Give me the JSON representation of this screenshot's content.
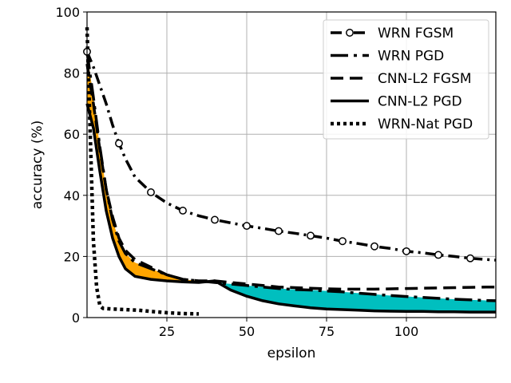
{
  "chart_data": {
    "type": "line",
    "xlabel": "epsilon",
    "ylabel": "accuracy (%)",
    "xlim": [
      0,
      128
    ],
    "ylim": [
      0,
      100
    ],
    "x_ticks": [
      25,
      50,
      75,
      100
    ],
    "x_tick_labels": [
      "25",
      "50",
      "75",
      "100"
    ],
    "y_ticks": [
      0,
      20,
      40,
      60,
      80,
      100
    ],
    "y_tick_labels": [
      "0",
      "20",
      "40",
      "60",
      "80",
      "100"
    ],
    "grid": true,
    "legend_position": "top-right",
    "series": [
      {
        "name": "WRN FGSM",
        "style": "dashdot",
        "marker": "circle",
        "marker_x": [
          0,
          10,
          20,
          30,
          40,
          50,
          60,
          70,
          80,
          90,
          100,
          110,
          120
        ],
        "x": [
          0,
          2,
          4,
          6,
          8,
          10,
          12,
          15,
          20,
          25,
          30,
          35,
          40,
          45,
          50,
          55,
          60,
          65,
          70,
          75,
          80,
          85,
          90,
          95,
          100,
          105,
          110,
          115,
          120,
          125,
          128
        ],
        "y": [
          87,
          82,
          76,
          70,
          63,
          57,
          52,
          46,
          41,
          37.5,
          35,
          33.3,
          32,
          31,
          30,
          29.2,
          28.3,
          27.6,
          26.8,
          26,
          25,
          24.2,
          23.3,
          22.6,
          21.7,
          21.2,
          20.5,
          20,
          19.4,
          19,
          18.8
        ]
      },
      {
        "name": "WRN PGD",
        "style": "dashdot-long",
        "x": [
          0,
          2,
          4,
          6,
          8,
          10,
          12,
          15,
          20,
          25,
          30,
          35,
          40,
          45,
          50,
          55,
          60,
          65,
          70,
          75,
          80,
          85,
          90,
          95,
          100,
          105,
          110,
          115,
          120,
          125,
          128
        ],
        "y": [
          87,
          72,
          56,
          42,
          32,
          25,
          21,
          18,
          16,
          14,
          12.5,
          12,
          11.5,
          11,
          10.5,
          10,
          9.5,
          9.2,
          9,
          8.7,
          8.4,
          8,
          7.6,
          7.2,
          6.9,
          6.6,
          6.3,
          6,
          5.8,
          5.6,
          5.5
        ]
      },
      {
        "name": "CNN-L2 FGSM",
        "style": "dashed",
        "x": [
          0,
          2,
          4,
          6,
          8,
          10,
          12,
          15,
          20,
          25,
          30,
          35,
          40,
          45,
          50,
          55,
          60,
          65,
          70,
          75,
          80,
          85,
          90,
          95,
          100,
          105,
          110,
          115,
          120,
          125,
          128
        ],
        "y": [
          83,
          70,
          55,
          42,
          33,
          26,
          22,
          19,
          16.5,
          14,
          12.5,
          12,
          12,
          11.5,
          11,
          10.5,
          10,
          9.8,
          9.6,
          9.4,
          9.3,
          9.3,
          9.3,
          9.4,
          9.5,
          9.6,
          9.7,
          9.8,
          9.9,
          10,
          10
        ]
      },
      {
        "name": "CNN-L2 PGD",
        "style": "solid",
        "x": [
          0,
          2,
          4,
          6,
          8,
          10,
          12,
          15,
          20,
          25,
          30,
          35,
          40,
          45,
          50,
          55,
          60,
          65,
          70,
          75,
          80,
          85,
          90,
          95,
          100,
          105,
          110,
          115,
          120,
          125,
          128
        ],
        "y": [
          70,
          62,
          48,
          35,
          26,
          20,
          16,
          13.5,
          12.5,
          12,
          11.7,
          11.5,
          12,
          9,
          7,
          5.5,
          4.5,
          3.8,
          3.2,
          2.8,
          2.6,
          2.4,
          2.2,
          2.1,
          2,
          2,
          1.9,
          1.9,
          1.8,
          1.8,
          1.8
        ]
      },
      {
        "name": "WRN-Nat PGD",
        "style": "dotted",
        "x": [
          0,
          1,
          2,
          3,
          4,
          5,
          8,
          12,
          16,
          20,
          25,
          30,
          35
        ],
        "y": [
          95,
          60,
          25,
          10,
          4,
          3,
          2.8,
          2.6,
          2.4,
          2,
          1.6,
          1.3,
          1.2
        ]
      }
    ],
    "fills": [
      {
        "between": [
          "WRN PGD",
          "CNN-L2 PGD"
        ],
        "x_range": [
          0,
          38
        ],
        "color": "#ffa500"
      },
      {
        "between": [
          "WRN PGD",
          "CNN-L2 PGD"
        ],
        "x_range": [
          38,
          128
        ],
        "color": "#00bfbf"
      }
    ]
  }
}
